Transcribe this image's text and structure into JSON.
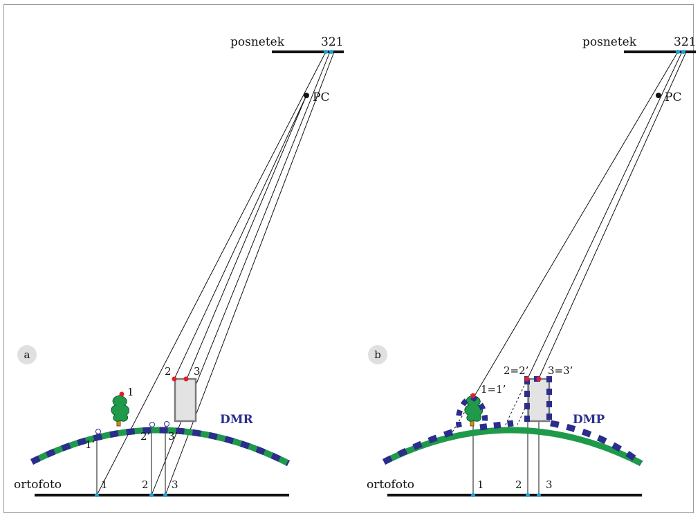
{
  "colors": {
    "dmr_blue": "#2b2d8c",
    "dmr_green": "#1f9a4a",
    "camera_point": "#1aa3d9",
    "object_point": "#e0202a",
    "tree_green": "#1f9a4a",
    "building_fill": "#e3e3e3",
    "badge_fill": "#e0e0e0"
  },
  "panel_a": {
    "badge": "a",
    "image_label": "posnetek",
    "image_points": "321",
    "projection_center": "PC",
    "surface_label": "DMR",
    "ground_label": "ortofoto",
    "object_points": [
      "1",
      "2",
      "3"
    ],
    "surface_points": [
      "1’",
      "2’",
      "3’"
    ],
    "ortho_points": [
      "1",
      "2",
      "3"
    ]
  },
  "panel_b": {
    "badge": "b",
    "image_label": "posnetek",
    "image_points": "321",
    "projection_center": "PC",
    "surface_label": "DMP",
    "ground_label": "ortofoto",
    "object_points": [
      "1=1’",
      "2=2’",
      "3=3’"
    ],
    "ortho_points": [
      "1",
      "2",
      "3"
    ]
  }
}
